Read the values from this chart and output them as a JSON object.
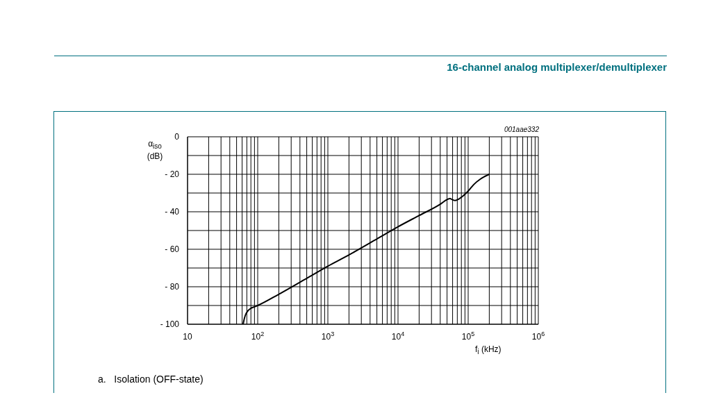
{
  "chart_data": {
    "type": "line",
    "title": "16-channel analog multiplexer/demultiplexer",
    "xlabel": "f$_{i}$ (kHz)",
    "ylabel": "α$_{iso}$ (dB)",
    "annotations": [
      "001aae332",
      "a.   Isolation (OFF-state)"
    ],
    "log": "x",
    "grid": true,
    "marker": "none",
    "line_style": "solid",
    "xlim": [
      10,
      1000000
    ],
    "ylim": [
      -100,
      0
    ],
    "xticks": [
      10,
      {
        "value": 20,
        "label": null
      },
      {
        "value": 30,
        "label": null
      },
      {
        "value": 40,
        "label": null
      },
      {
        "value": 50,
        "label": null
      },
      {
        "value": 60,
        "label": null
      },
      {
        "value": 70,
        "label": null
      },
      {
        "value": 80,
        "label": null
      },
      {
        "value": 90,
        "label": null
      },
      {
        "value": 100,
        "label": "10$^{2}$"
      },
      {
        "value": 200,
        "label": null
      },
      {
        "value": 300,
        "label": null
      },
      {
        "value": 400,
        "label": null
      },
      {
        "value": 500,
        "label": null
      },
      {
        "value": 600,
        "label": null
      },
      {
        "value": 700,
        "label": null
      },
      {
        "value": 800,
        "label": null
      },
      {
        "value": 900,
        "label": null
      },
      {
        "value": 1000,
        "label": "10$^{3}$"
      },
      {
        "value": 2000,
        "label": null
      },
      {
        "value": 3000,
        "label": null
      },
      {
        "value": 4000,
        "label": null
      },
      {
        "value": 5000,
        "label": null
      },
      {
        "value": 6000,
        "label": null
      },
      {
        "value": 7000,
        "label": null
      },
      {
        "value": 8000,
        "label": null
      },
      {
        "value": 9000,
        "label": null
      },
      {
        "value": 10000,
        "label": "10$^{4}$"
      },
      {
        "value": 20000,
        "label": null
      },
      {
        "value": 30000,
        "label": null
      },
      {
        "value": 40000,
        "label": null
      },
      {
        "value": 50000,
        "label": null
      },
      {
        "value": 60000,
        "label": null
      },
      {
        "value": 70000,
        "label": null
      },
      {
        "value": 80000,
        "label": null
      },
      {
        "value": 90000,
        "label": null
      },
      {
        "value": 100000,
        "label": "10$^{5}$"
      },
      {
        "value": 200000,
        "label": null
      },
      {
        "value": 300000,
        "label": null
      },
      {
        "value": 400000,
        "label": null
      },
      {
        "value": 500000,
        "label": null
      },
      {
        "value": 600000,
        "label": null
      },
      {
        "value": 700000,
        "label": null
      },
      {
        "value": 800000,
        "label": null
      },
      {
        "value": 900000,
        "label": null
      },
      {
        "value": 1000000,
        "label": "10$^{6}$"
      }
    ],
    "yticks": [
      {
        "value": -100,
        "label": "- 100"
      },
      {
        "value": -90,
        "label": null
      },
      {
        "value": -80,
        "label": "- 80"
      },
      {
        "value": -70,
        "label": null
      },
      {
        "value": -60,
        "label": "- 60"
      },
      {
        "value": -50,
        "label": null
      },
      {
        "value": -40,
        "label": "- 40"
      },
      {
        "value": -30,
        "label": null
      },
      {
        "value": -20,
        "label": "- 20"
      },
      {
        "value": -10,
        "label": null
      },
      0
    ],
    "series": [
      {
        "color": "#000000",
        "x": [
          62,
          64,
          67,
          72,
          80,
          90,
          100,
          200,
          500,
          1000,
          2000,
          5000,
          10000,
          20000,
          40000,
          50000,
          55000,
          60000,
          65000,
          75000,
          85000,
          100000,
          120000,
          150000,
          200000
        ],
        "values": [
          -100,
          -97.5,
          -95,
          -93,
          -91.5,
          -90.7,
          -90,
          -84,
          -75.5,
          -69,
          -63,
          -54.5,
          -48,
          -42,
          -36,
          -33.5,
          -33,
          -33.6,
          -34,
          -33,
          -31.5,
          -29,
          -25.5,
          -22.5,
          -20
        ]
      }
    ]
  }
}
